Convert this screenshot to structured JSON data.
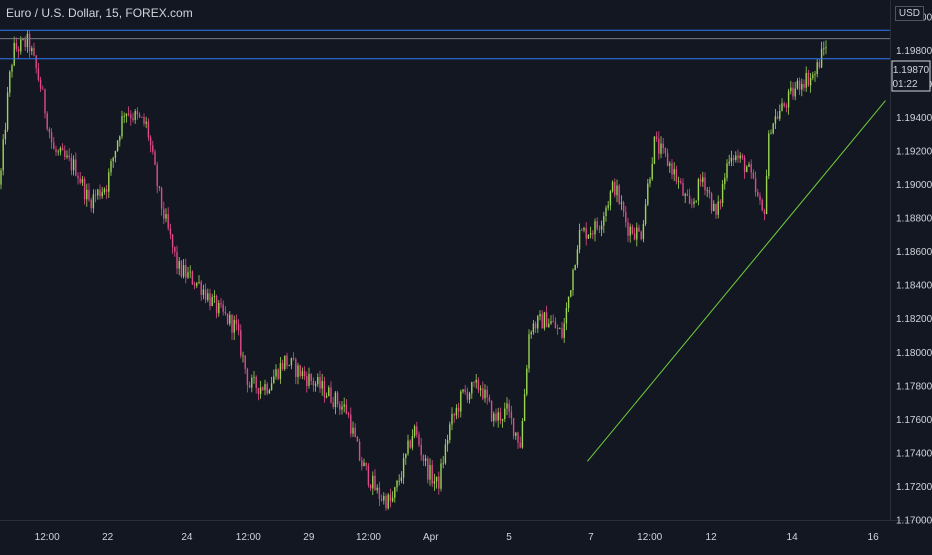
{
  "header": {
    "title": "Euro / U.S. Dollar, 15, FOREX.com",
    "currency": "USD"
  },
  "price_label": {
    "value": "1.19870",
    "countdown": "01:22"
  },
  "colors": {
    "background": "#131722",
    "axis_text": "#d1d4dc",
    "bull": "#9bd653",
    "bear": "#e04a8c",
    "hline": "#3179f5",
    "trend": "#6fcf3a"
  },
  "chart_data": {
    "type": "candlestick",
    "ylim": [
      1.17,
      1.201
    ],
    "yticks": [
      "1.17000",
      "1.17200",
      "1.17400",
      "1.17600",
      "1.17800",
      "1.18000",
      "1.18200",
      "1.18400",
      "1.18600",
      "1.18800",
      "1.19000",
      "1.19200",
      "1.19400",
      "1.19600",
      "1.19800",
      "1.20000"
    ],
    "xticks": [
      {
        "label": "12:00",
        "pos": 0.053
      },
      {
        "label": "22",
        "pos": 0.121
      },
      {
        "label": "24",
        "pos": 0.21
      },
      {
        "label": "12:00",
        "pos": 0.279
      },
      {
        "label": "29",
        "pos": 0.347
      },
      {
        "label": "12:00",
        "pos": 0.414
      },
      {
        "label": "Apr",
        "pos": 0.484
      },
      {
        "label": "5",
        "pos": 0.572
      },
      {
        "label": "7",
        "pos": 0.664
      },
      {
        "label": "12:00",
        "pos": 0.73
      },
      {
        "label": "12",
        "pos": 0.799
      },
      {
        "label": "14",
        "pos": 0.89
      },
      {
        "label": "16",
        "pos": 0.981
      }
    ],
    "path_anchors": [
      [
        0.0,
        1.19
      ],
      [
        0.01,
        1.196
      ],
      [
        0.015,
        1.198
      ],
      [
        0.032,
        1.1985
      ],
      [
        0.045,
        1.196
      ],
      [
        0.06,
        1.192
      ],
      [
        0.085,
        1.191
      ],
      [
        0.1,
        1.189
      ],
      [
        0.12,
        1.19
      ],
      [
        0.14,
        1.1945
      ],
      [
        0.165,
        1.1935
      ],
      [
        0.18,
        1.189
      ],
      [
        0.2,
        1.185
      ],
      [
        0.225,
        1.184
      ],
      [
        0.245,
        1.1825
      ],
      [
        0.265,
        1.1815
      ],
      [
        0.28,
        1.178
      ],
      [
        0.3,
        1.178
      ],
      [
        0.32,
        1.1795
      ],
      [
        0.345,
        1.1785
      ],
      [
        0.37,
        1.1775
      ],
      [
        0.39,
        1.1765
      ],
      [
        0.405,
        1.1735
      ],
      [
        0.425,
        1.1715
      ],
      [
        0.44,
        1.171
      ],
      [
        0.455,
        1.1735
      ],
      [
        0.465,
        1.1755
      ],
      [
        0.48,
        1.173
      ],
      [
        0.492,
        1.172
      ],
      [
        0.505,
        1.1755
      ],
      [
        0.52,
        1.1775
      ],
      [
        0.54,
        1.178
      ],
      [
        0.555,
        1.176
      ],
      [
        0.57,
        1.1765
      ],
      [
        0.585,
        1.1745
      ],
      [
        0.595,
        1.1815
      ],
      [
        0.615,
        1.182
      ],
      [
        0.632,
        1.181
      ],
      [
        0.65,
        1.187
      ],
      [
        0.672,
        1.1875
      ],
      [
        0.69,
        1.19
      ],
      [
        0.705,
        1.1875
      ],
      [
        0.72,
        1.187
      ],
      [
        0.735,
        1.1925
      ],
      [
        0.755,
        1.191
      ],
      [
        0.775,
        1.1885
      ],
      [
        0.79,
        1.1905
      ],
      [
        0.805,
        1.188
      ],
      [
        0.82,
        1.192
      ],
      [
        0.84,
        1.191
      ],
      [
        0.858,
        1.188
      ],
      [
        0.865,
        1.1935
      ],
      [
        0.885,
        1.195
      ],
      [
        0.9,
        1.1962
      ],
      [
        0.915,
        1.1965
      ],
      [
        0.93,
        1.1987
      ]
    ],
    "horizontal_lines": [
      1.1992,
      1.1987,
      1.1975
    ],
    "trend_line": {
      "from": [
        0.66,
        1.1735
      ],
      "to": [
        0.995,
        1.195
      ]
    }
  }
}
